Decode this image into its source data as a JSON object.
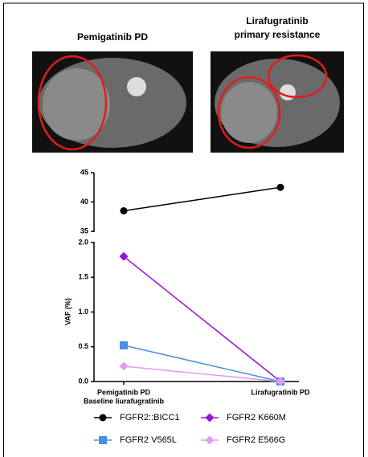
{
  "panels": [
    {
      "title": [
        "Pemigatinib PD"
      ]
    },
    {
      "title": [
        "Lirafugratinib",
        "primary resistance"
      ]
    }
  ],
  "chart_data": {
    "type": "line",
    "ylabel": "VAF (%)",
    "categories": [
      "Pemigatinib PD",
      "Lirafugratinib PD"
    ],
    "category_sublabels": [
      "Baseline liurafugratinib",
      null
    ],
    "series": [
      {
        "name": "FGFR2::BICC1",
        "color": "#000000",
        "marker": "circle",
        "values": [
          38.5,
          42.5
        ]
      },
      {
        "name": "FGFR2 K660M",
        "color": "#9b10d6",
        "marker": "diamond",
        "values": [
          1.8,
          0
        ]
      },
      {
        "name": "FGFR2 V565L",
        "color": "#4a90e2",
        "marker": "square",
        "values": [
          0.52,
          0
        ]
      },
      {
        "name": "FGFR2 E566G",
        "color": "#e39af0",
        "marker": "diamond",
        "values": [
          0.22,
          0
        ]
      }
    ],
    "ylim": [
      0,
      2
    ],
    "yticks": [
      {
        "value": 0,
        "label": "0.0"
      },
      {
        "value": 0.5,
        "label": "0.5"
      },
      {
        "value": 1,
        "label": "1.0"
      },
      {
        "value": 1.5,
        "label": "1.5"
      },
      {
        "value": 2,
        "label": "2.0"
      }
    ],
    "y_break": {
      "ylim": [
        35,
        45
      ],
      "yticks": [
        35,
        40,
        45
      ]
    }
  }
}
